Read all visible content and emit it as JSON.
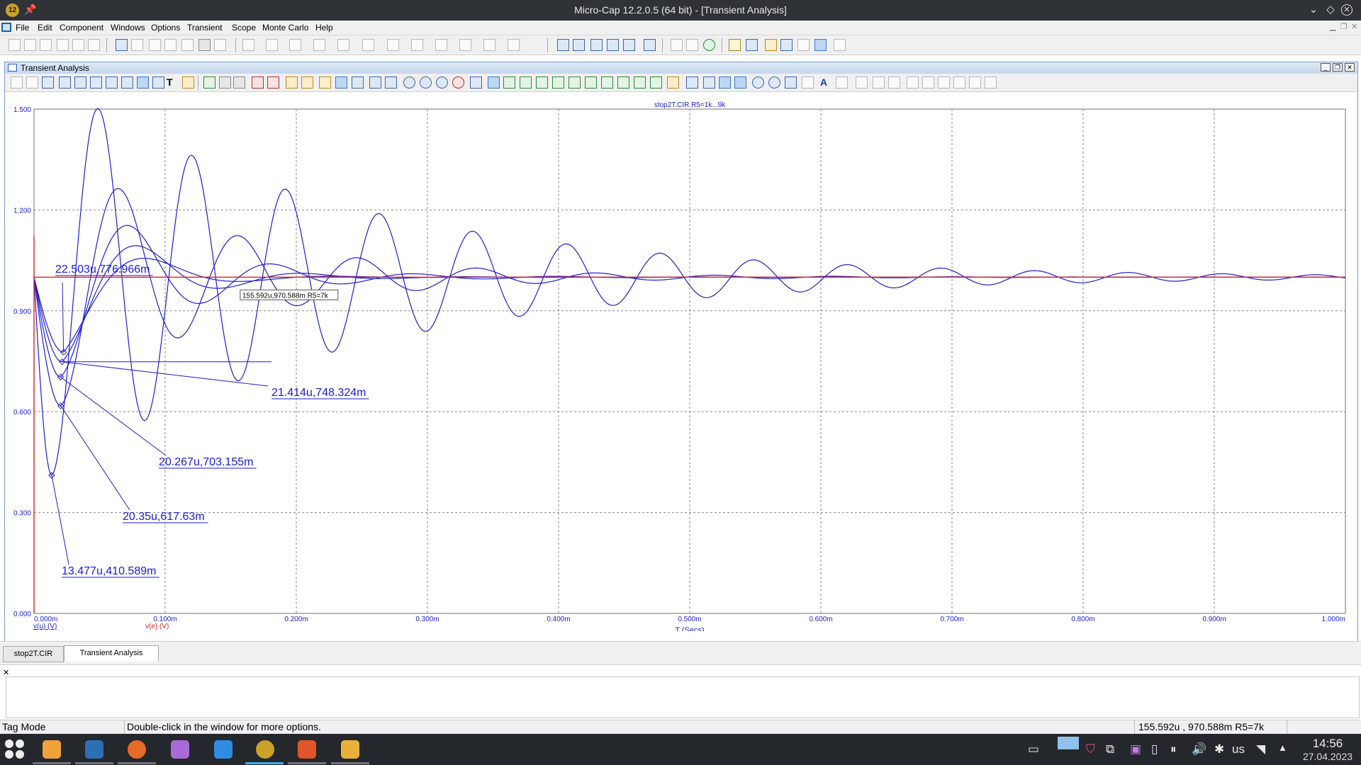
{
  "window": {
    "title": "Micro-Cap 12.2.0.5 (64 bit) - [Transient Analysis]",
    "app_icon_label": "12"
  },
  "menu": {
    "items": [
      "File",
      "Edit",
      "Component",
      "Windows",
      "Options",
      "Transient",
      "Scope",
      "Monte Carlo",
      "Help"
    ]
  },
  "child_window": {
    "title": "Transient Analysis"
  },
  "plot": {
    "circuit_title": "stop2T.CIR R5=1k...9k",
    "x_axis_label": "T (Secs)",
    "expressions": [
      {
        "text": "v(u) (V)",
        "color": "#1f1fd0"
      },
      {
        "text": "v(e) (V)",
        "color": "#e02020"
      }
    ],
    "hover_tooltip": "155.592u,970.588m R5=7k"
  },
  "chart_data": {
    "type": "line",
    "title": "stop2T.CIR R5=1k...9k",
    "xlabel": "T (Secs)",
    "ylabel": "",
    "xlim": [
      0,
      0.001
    ],
    "ylim": [
      0,
      1.5
    ],
    "grid": true,
    "x_ticks": [
      "0.000m",
      "0.100m",
      "0.200m",
      "0.300m",
      "0.400m",
      "0.500m",
      "0.600m",
      "0.700m",
      "0.800m",
      "0.900m",
      "1.000m"
    ],
    "y_ticks": [
      "0.000",
      "0.300",
      "0.600",
      "0.900",
      "1.200",
      "1.500"
    ],
    "series": [
      {
        "name": "v(e) (V)",
        "color": "#e02020",
        "x": [
          0,
          0.001
        ],
        "y": [
          1.0,
          1.0
        ]
      },
      {
        "name": "v(u) (V)",
        "color": "#1f1fd0",
        "family": "damped responses for R5 = 1k ... 9k"
      }
    ],
    "minima": [
      {
        "x": 1.3477e-05,
        "y": 0.410589,
        "label": "13.477u,410.589m"
      },
      {
        "x": 2.035e-05,
        "y": 0.61763,
        "label": "20.35u,617.63m"
      },
      {
        "x": 2.0267e-05,
        "y": 0.703155,
        "label": "20.267u,703.155m"
      },
      {
        "x": 2.1414e-05,
        "y": 0.748324,
        "label": "21.414u,748.324m"
      },
      {
        "x": 2.2503e-05,
        "y": 0.776966,
        "label": "22.503u,776.966m"
      }
    ],
    "cursor_point": {
      "x": 0.000155592,
      "y": 0.970588,
      "label": "155.592u,970.588m R5=7k"
    }
  },
  "tabs": [
    {
      "label": "stop2T.CIR",
      "active": false
    },
    {
      "label": "Transient Analysis",
      "active": true
    }
  ],
  "status": {
    "mode": "Tag Mode",
    "hint": "Double-click in the window for more options.",
    "readout": "155.592u , 970.588m R5=7k"
  },
  "taskbar": {
    "keyboard": "us",
    "time": "14:56",
    "date": "27.04.2023",
    "apps": [
      "app-launcher",
      "file-manager",
      "terminal",
      "firefox",
      "store",
      "vscode",
      "microcap",
      "plot-tool",
      "layers-app"
    ]
  }
}
